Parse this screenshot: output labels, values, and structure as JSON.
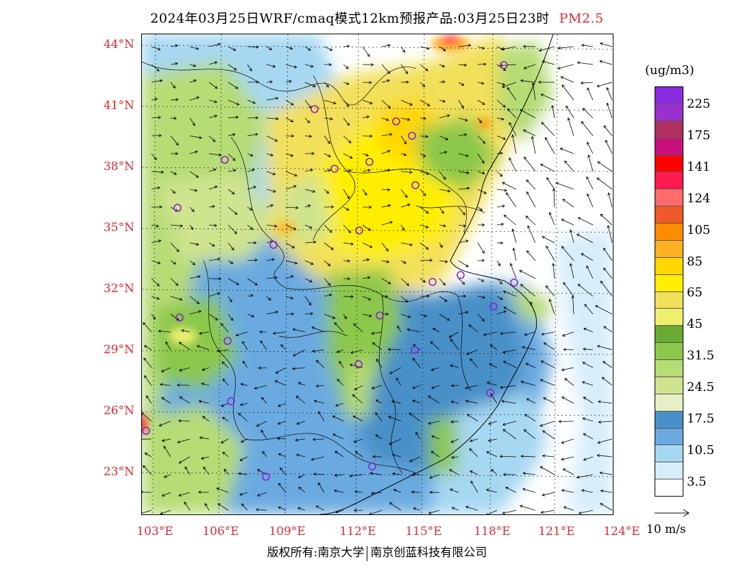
{
  "title": {
    "main": "2024年03月25日WRF/cmaq模式12km预报产品:03月25日23时",
    "species": "PM2.5"
  },
  "colors": {
    "label_red": "#e8262f",
    "station_marker": "#8a1fd6"
  },
  "latitude_labels": [
    "44°N",
    "41°N",
    "38°N",
    "35°N",
    "32°N",
    "29°N",
    "26°N",
    "23°N"
  ],
  "longitude_labels": [
    "103°E",
    "106°E",
    "109°E",
    "112°E",
    "115°E",
    "118°E",
    "121°E",
    "124°E"
  ],
  "colorbar": {
    "unit": "(ug/m3)",
    "colors_top_to_bottom": [
      "#8a2be2",
      "#9b30d0",
      "#b03060",
      "#c8107d",
      "#ff0000",
      "#ff1a4f",
      "#ff6b6b",
      "#ef5a28",
      "#ff8c00",
      "#ffb020",
      "#ffd700",
      "#ffee00",
      "#f2e05a",
      "#efef6e",
      "#6aaa32",
      "#8cc84c",
      "#b6dc74",
      "#cfe48f",
      "#e6efc6",
      "#4a90c8",
      "#6aaae0",
      "#a6d8f2",
      "#d6eefa",
      "#ffffff"
    ],
    "labels": [
      "225",
      "175",
      "141",
      "124",
      "105",
      "85",
      "65",
      "45",
      "31.5",
      "24.5",
      "17.5",
      "10.5",
      "3.5"
    ]
  },
  "wind_scale": {
    "label": "10 m/s"
  },
  "copyright": {
    "left": "版权所有:南京大学",
    "right": "南京创蓝科技有限公司"
  }
}
